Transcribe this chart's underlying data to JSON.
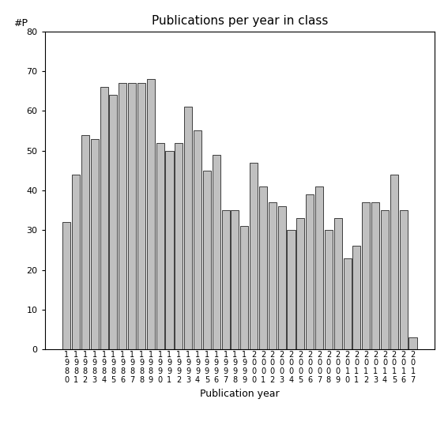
{
  "title": "Publications per year in class",
  "xlabel": "Publication year",
  "ylabel": "#P",
  "years": [
    1980,
    1981,
    1982,
    1983,
    1984,
    1985,
    1986,
    1987,
    1988,
    1989,
    1990,
    1991,
    1992,
    1993,
    1994,
    1995,
    1996,
    1997,
    1998,
    1999,
    2000,
    2001,
    2002,
    2003,
    2004,
    2005,
    2006,
    2007,
    2008,
    2009,
    2010,
    2011,
    2012,
    2013,
    2014,
    2015,
    2016,
    2017
  ],
  "values": [
    32,
    44,
    54,
    53,
    66,
    64,
    67,
    67,
    67,
    68,
    52,
    50,
    52,
    61,
    55,
    45,
    49,
    35,
    35,
    31,
    47,
    41,
    37,
    36,
    30,
    33,
    39,
    41,
    30,
    33,
    23,
    26,
    37,
    37,
    35,
    44,
    35,
    3
  ],
  "bar_color": "#c0c0c0",
  "bar_edge_color": "#000000",
  "ylim": [
    0,
    80
  ],
  "yticks": [
    0,
    10,
    20,
    30,
    40,
    50,
    60,
    70,
    80
  ],
  "background_color": "#ffffff",
  "title_fontsize": 11,
  "tick_fontsize": 8,
  "xlabel_fontsize": 9,
  "bar_linewidth": 0.5,
  "bar_width": 0.85
}
